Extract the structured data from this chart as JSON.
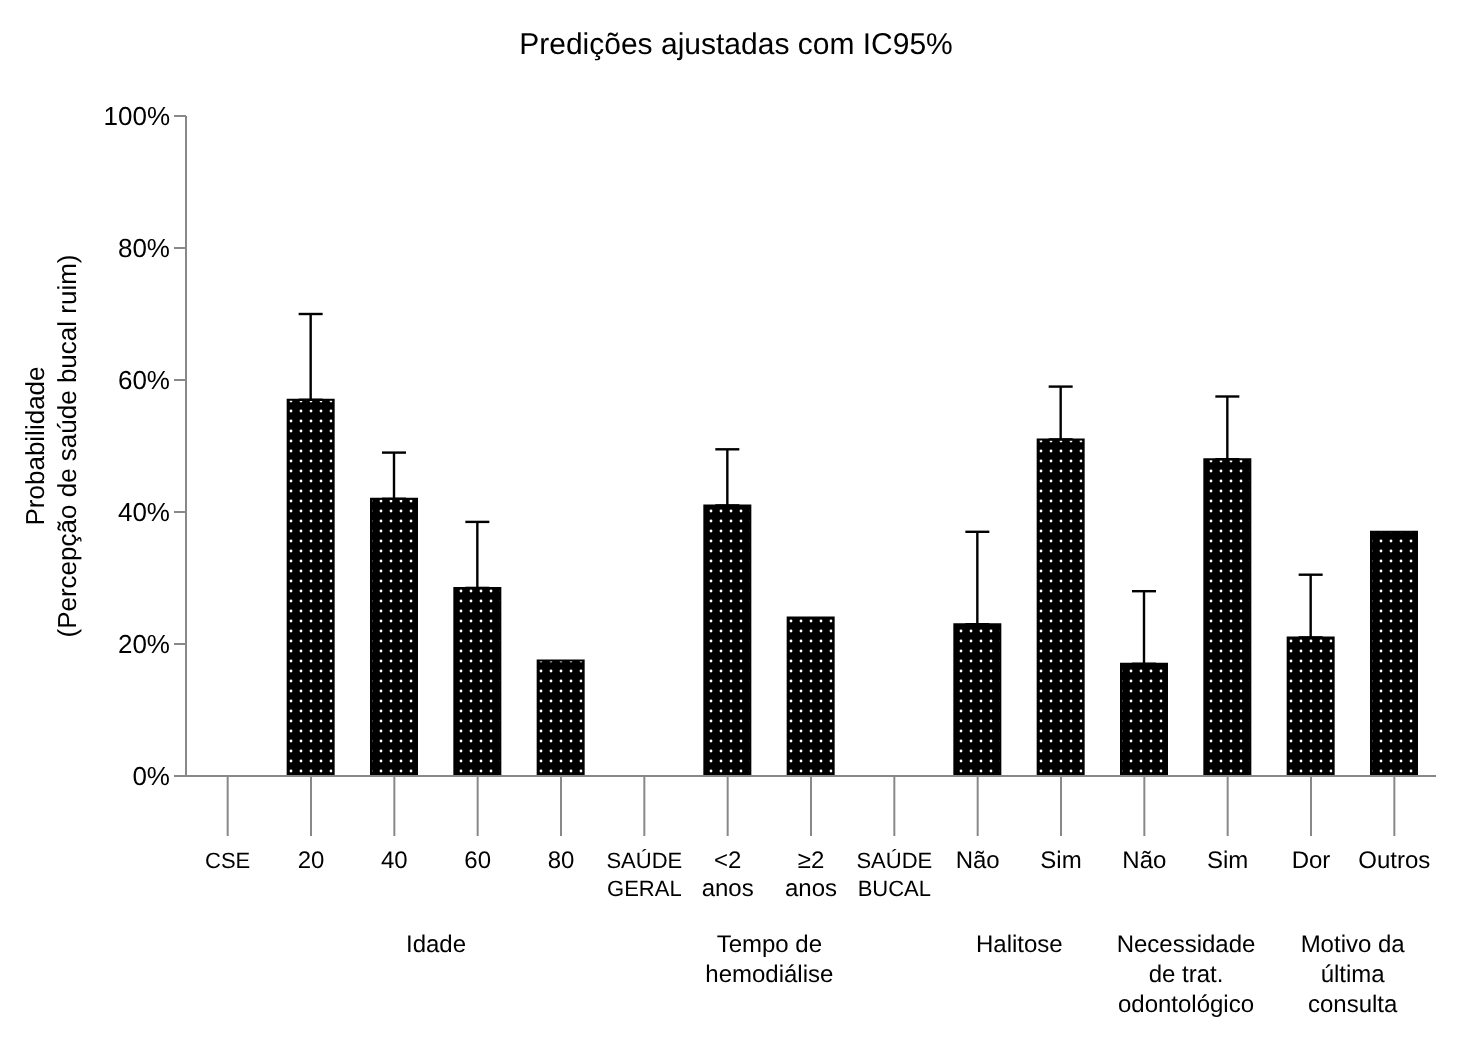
{
  "chart_data": {
    "type": "bar",
    "title": "Predições ajustadas com IC95%",
    "ylabel": "Probabilidade\n(Percepção de saúde bucal ruim)",
    "categories": [
      "CSE",
      "20",
      "40",
      "60",
      "80",
      "SAÚDE GERAL",
      "<2 anos",
      "≥2 anos",
      "SAÚDE BUCAL",
      "Não",
      "Sim",
      "Não",
      "Sim",
      "Dor",
      "Outros"
    ],
    "values": [
      null,
      57,
      42,
      28.5,
      17.5,
      null,
      41,
      24,
      null,
      23,
      51,
      17,
      48,
      21,
      37
    ],
    "errors": [
      null,
      [
        57,
        70
      ],
      [
        42,
        49
      ],
      [
        28.5,
        38.5
      ],
      null,
      null,
      [
        41,
        49.5
      ],
      null,
      null,
      [
        23,
        37
      ],
      [
        51,
        59
      ],
      [
        17,
        28
      ],
      [
        48,
        57.5
      ],
      [
        21,
        30.5
      ],
      null
    ],
    "colors": [
      "#000000",
      "#000000",
      "#000000",
      "#000000",
      "#000000",
      "#000000",
      "#000000",
      "#000000",
      "#000000",
      "#000000",
      "#000000",
      "#000000",
      "#000000",
      "#000000",
      "#000000"
    ],
    "annotations": [
      "Idade",
      "Tempo de hemodiálise",
      "Halitose",
      "Necessidade de trat. odontológico",
      "Motivo da última consulta"
    ],
    "ylim": [
      0,
      100
    ],
    "yticks": [
      {
        "value": 0,
        "label": "0%"
      },
      {
        "value": 20,
        "label": "20%"
      },
      {
        "value": 40,
        "label": "40%"
      },
      {
        "value": 60,
        "label": "60%"
      },
      {
        "value": 80,
        "label": "80%"
      },
      {
        "value": 100,
        "label": "100%"
      }
    ],
    "grid": false,
    "legend": false
  }
}
